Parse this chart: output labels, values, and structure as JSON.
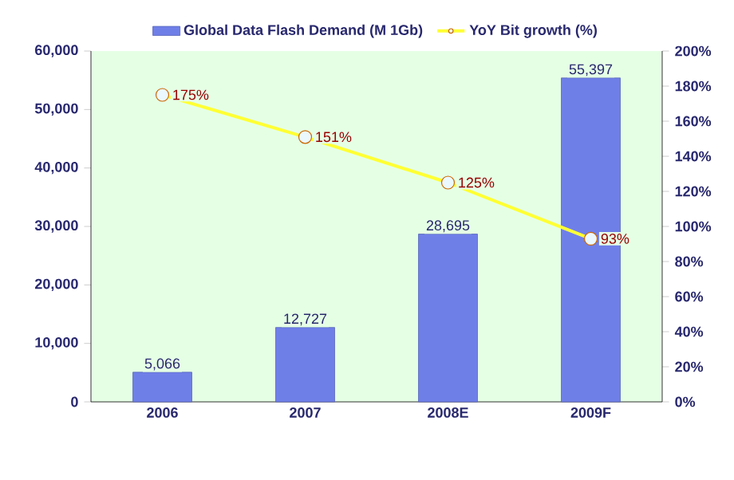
{
  "chart_data": {
    "type": "bar",
    "categories": [
      "2006",
      "2007",
      "2008E",
      "2009F"
    ],
    "series": [
      {
        "name": "Global Data Flash Demand (M 1Gb)",
        "color": "#6f7fe8",
        "values": [
          5066,
          12727,
          28695,
          55397
        ],
        "value_labels": [
          "5,066",
          "12,727",
          "28,695",
          "55,397"
        ]
      },
      {
        "name": "YoY Bit growth (%)",
        "type": "line",
        "axis": "y2",
        "color": "#ffff33",
        "values": [
          175,
          151,
          125,
          93
        ],
        "value_labels": [
          "175%",
          "151%",
          "125%",
          "93%"
        ]
      }
    ],
    "ylim": [
      0,
      60000
    ],
    "yticks": [
      {
        "value": 0,
        "label": "0"
      },
      {
        "value": 10000,
        "label": "10,000"
      },
      {
        "value": 20000,
        "label": "20,000"
      },
      {
        "value": 30000,
        "label": "30,000"
      },
      {
        "value": 40000,
        "label": "40,000"
      },
      {
        "value": 50000,
        "label": "50,000"
      },
      {
        "value": 60000,
        "label": "60,000"
      }
    ],
    "y2lim": [
      0,
      200
    ],
    "y2ticks": [
      {
        "value": 0,
        "label": "0%"
      },
      {
        "value": 20,
        "label": "20%"
      },
      {
        "value": 40,
        "label": "40%"
      },
      {
        "value": 60,
        "label": "60%"
      },
      {
        "value": 80,
        "label": "80%"
      },
      {
        "value": 100,
        "label": "100%"
      },
      {
        "value": 120,
        "label": "120%"
      },
      {
        "value": 140,
        "label": "140%"
      },
      {
        "value": 160,
        "label": "160%"
      },
      {
        "value": 180,
        "label": "180%"
      },
      {
        "value": 200,
        "label": "200%"
      }
    ],
    "marker": "circle",
    "legend": "top"
  }
}
